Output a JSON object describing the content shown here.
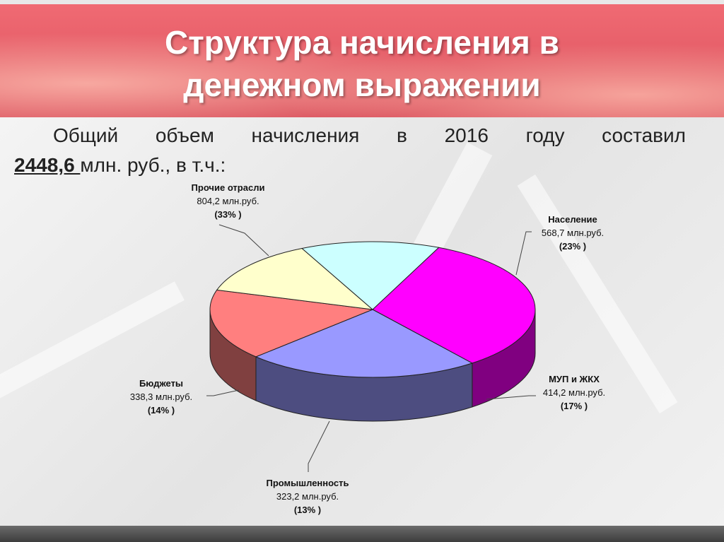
{
  "slide": {
    "title_line1": "Структура начисления в",
    "title_line2": "денежном выражении",
    "intro_line1": "Общий объем начисления в 2016 году составил",
    "total_value": "2448,6 ",
    "intro_line2_rest": "млн. руб., в т.ч.:"
  },
  "colors": {
    "header": "#e0565f",
    "text": "#222222"
  },
  "chart_data": {
    "type": "pie",
    "title": "",
    "unit": "млн.руб.",
    "total": 2448.6,
    "slices": [
      {
        "name": "Прочие отрасли",
        "value": 804.2,
        "value_text": "804,2 млн.руб.",
        "percent_text": "(33% )",
        "color": "#ff00ff"
      },
      {
        "name": "Население",
        "value": 568.7,
        "value_text": "568,7 млн.руб.",
        "percent_text": "(23% )",
        "color": "#9999ff"
      },
      {
        "name": "МУП и ЖКХ",
        "value": 414.2,
        "value_text": "414,2 млн.руб.",
        "percent_text": "(17% )",
        "color": "#ff7f7f"
      },
      {
        "name": "Промышленность",
        "value": 323.2,
        "value_text": "323,2 млн.руб.",
        "percent_text": "(13% )",
        "color": "#ffffcc"
      },
      {
        "name": "Бюджеты",
        "value": 338.3,
        "value_text": "338,3 млн.руб.",
        "percent_text": "(14% )",
        "color": "#ccffff"
      }
    ]
  }
}
